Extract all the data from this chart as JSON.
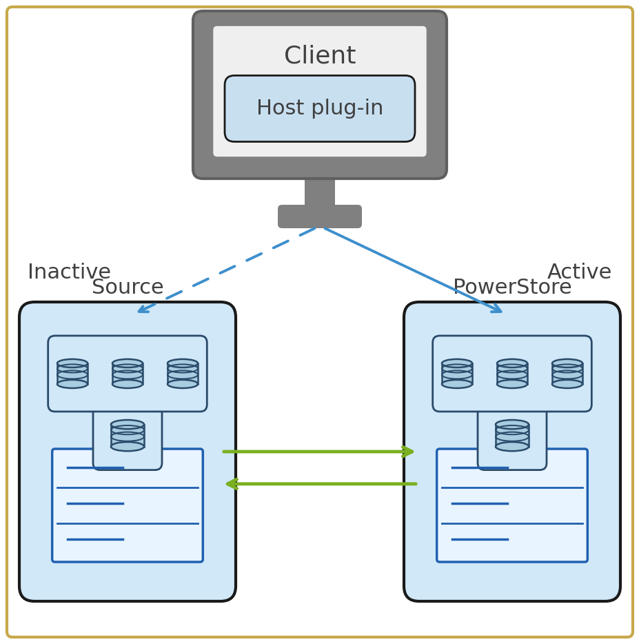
{
  "bg_color": "#ffffff",
  "border_color": "#c8a84b",
  "monitor_gray": "#808080",
  "monitor_screen_color": "#efefef",
  "plugin_box_color": "#c8dff0",
  "plugin_box_border": "#2a2a2a",
  "storage_box_color": "#d0e8f8",
  "storage_box_border": "#1a1a1a",
  "server_fill_color": "#a8d0f0",
  "server_border_color": "#2060b0",
  "server_line_color": "#2060b0",
  "db_fill_color": "#a8cce0",
  "db_border_color": "#2a4a6a",
  "arrow_blue_color": "#3d8fcc",
  "arrow_green_color": "#7ab020",
  "text_dark": "#404040",
  "client_text": "Client",
  "plugin_text": "Host plug-in",
  "source_text": "Source",
  "powerstore_text": "PowerStore",
  "inactive_text": "Inactive",
  "active_text": "Active"
}
